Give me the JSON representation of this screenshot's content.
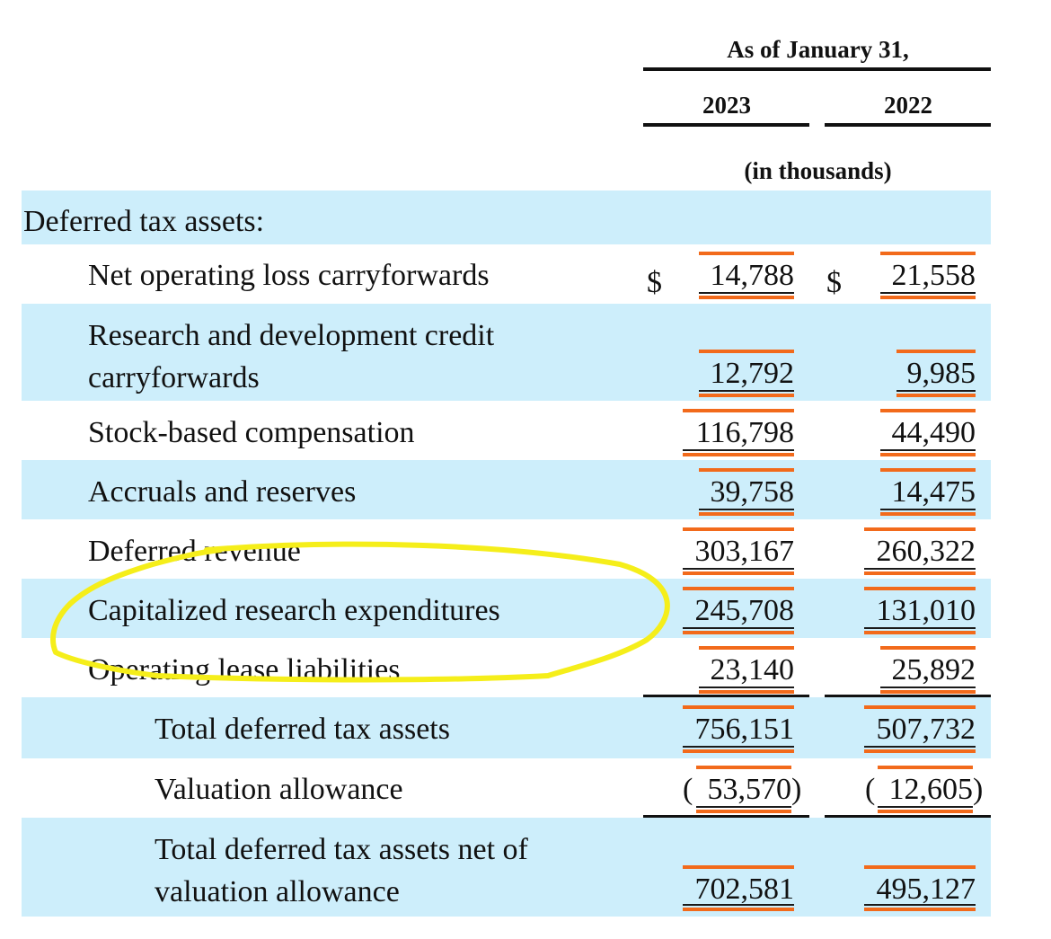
{
  "header": {
    "period_label": "As of January 31,",
    "year_2023": "2023",
    "year_2022": "2022",
    "units": "(in thousands)"
  },
  "section_title": "Deferred tax assets:",
  "currency_symbol": "$",
  "rows": [
    {
      "label": "Net operating loss carryforwards",
      "v2023": "14,788",
      "v2022": "21,558"
    },
    {
      "label_line1": "Research and development credit",
      "label_line2": "carryforwards",
      "v2023": "12,792",
      "v2022": "9,985"
    },
    {
      "label": "Stock-based compensation",
      "v2023": "116,798",
      "v2022": "44,490"
    },
    {
      "label": "Accruals and reserves",
      "v2023": "39,758",
      "v2022": "14,475"
    },
    {
      "label": "Deferred revenue",
      "v2023": "303,167",
      "v2022": "260,322"
    },
    {
      "label": "Capitalized research expenditures",
      "v2023": "245,708",
      "v2022": "131,010"
    },
    {
      "label": "Operating lease liabilities",
      "v2023": "23,140",
      "v2022": "25,892"
    },
    {
      "label": "Total deferred tax assets",
      "v2023": "756,151",
      "v2022": "507,732"
    },
    {
      "label": "Valuation allowance",
      "v2023": "53,570",
      "v2022": "12,605"
    },
    {
      "label_line1": "Total deferred tax assets net of",
      "label_line2": "valuation allowance",
      "v2023": "702,581",
      "v2022": "495,127"
    }
  ],
  "colors": {
    "band": "#cdeefb",
    "highlight_bar": "#f26a1b",
    "annotation_circle": "#f5ee1a"
  }
}
